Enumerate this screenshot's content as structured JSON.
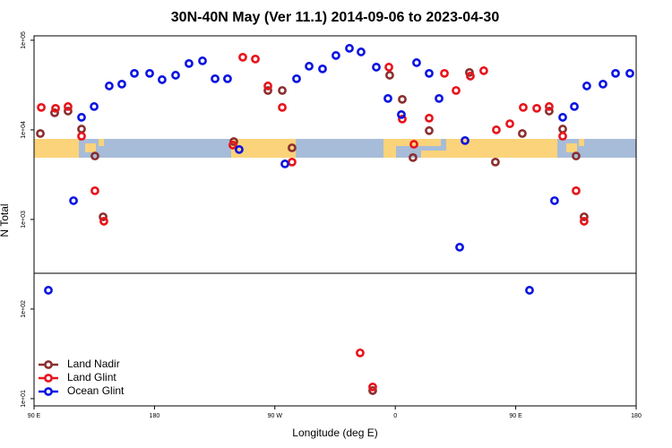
{
  "chart_data": {
    "type": "scatter",
    "title": "30N-40N May (Ver 11.1)   2014-09-06 to 2023-04-30",
    "x_label": "Longitude (deg E)",
    "y_label": "N Total",
    "log_y": true,
    "legend": "lower left",
    "xlim": [
      90,
      540
    ],
    "xticks": [
      {
        "value": 90,
        "label": "90 E"
      },
      {
        "value": 180,
        "label": "180"
      },
      {
        "value": 270,
        "label": "90 W"
      },
      {
        "value": 360,
        "label": "0"
      },
      {
        "value": 450,
        "label": "90 E"
      },
      {
        "value": 540,
        "label": "180"
      }
    ],
    "ylim": [
      8.3,
      112000
    ],
    "yticks": [
      {
        "value": 10,
        "label": "1e+01"
      },
      {
        "value": 100,
        "label": "1e+02"
      },
      {
        "value": 1000,
        "label": "1e+03"
      },
      {
        "value": 10000,
        "label": "1e+04"
      },
      {
        "value": 100000,
        "label": "1e+05"
      }
    ],
    "series": [
      {
        "name": "Land Nadir",
        "color": "#8b2e2e",
        "x": [
          94.7,
          105.4,
          115.4,
          125.5,
          135.5,
          141.6,
          239.3,
          264.8,
          275.5,
          282.8,
          355.8,
          365.2,
          373.2,
          385.3,
          415.4,
          434.8,
          454.9,
          475.0,
          485.1,
          495.1,
          501.1,
          343.1
        ],
        "values": [
          9100,
          15500,
          16200,
          10200,
          5100,
          1070,
          7400,
          27500,
          27500,
          6300,
          40700,
          21900,
          4900,
          9800,
          43700,
          4370,
          9100,
          16200,
          10200,
          5100,
          1070,
          12.3
        ]
      },
      {
        "name": "Land Glint",
        "color": "#e8141b",
        "x": [
          95.4,
          106.1,
          115.4,
          125.5,
          135.5,
          142.2,
          238.6,
          246.0,
          255.4,
          264.8,
          275.5,
          282.8,
          355.2,
          365.2,
          373.9,
          385.3,
          396.7,
          405.4,
          416.1,
          426.1,
          435.5,
          445.6,
          455.6,
          465.7,
          475.0,
          485.1,
          495.1,
          501.1,
          333.7,
          343.1
        ],
        "values": [
          17800,
          17400,
          18200,
          8500,
          2090,
          955,
          6760,
          64600,
          61700,
          30900,
          17800,
          4370,
          50100,
          13200,
          6900,
          13500,
          42700,
          27500,
          39800,
          45700,
          10000,
          11700,
          17800,
          17400,
          18200,
          8500,
          2090,
          955,
          32.4,
          13.5
        ]
      },
      {
        "name": "Ocean Glint",
        "color": "#0a14e0",
        "x": [
          100.7,
          119.5,
          125.5,
          134.9,
          146.2,
          155.6,
          165.0,
          176.4,
          185.7,
          195.8,
          205.8,
          215.9,
          225.3,
          234.6,
          243.3,
          277.5,
          286.2,
          295.6,
          305.6,
          315.6,
          325.7,
          334.4,
          345.8,
          354.5,
          364.5,
          375.9,
          385.3,
          392.7,
          408.1,
          412.1,
          460.3,
          479.0,
          485.1,
          493.8,
          503.1,
          515.2,
          524.6,
          535.3
        ],
        "values": [
          162,
          1620,
          13800,
          18200,
          30900,
          32400,
          42700,
          42700,
          36300,
          40700,
          55000,
          58900,
          37200,
          37200,
          6030,
          4170,
          37200,
          51300,
          47900,
          67600,
          81300,
          74100,
          50100,
          22400,
          14800,
          56200,
          42700,
          22400,
          490,
          7590,
          162,
          1620,
          13800,
          18200,
          30900,
          32400,
          42700,
          42700
        ]
      }
    ]
  }
}
